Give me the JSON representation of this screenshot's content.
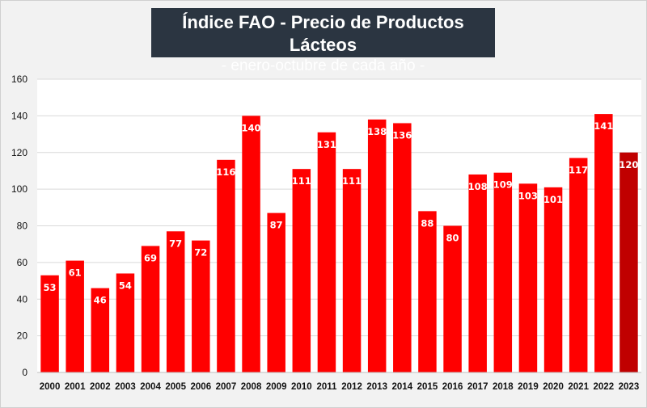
{
  "header": {
    "title": "Índice FAO - Precio de Productos Lácteos",
    "subtitle": "- enero-octubre de cada año -"
  },
  "chart_data": {
    "type": "bar",
    "title": "Índice FAO - Precio de Productos Lácteos",
    "subtitle": "- enero-octubre de cada año -",
    "xlabel": "",
    "ylabel": "",
    "ylim": [
      0,
      160
    ],
    "yticks": [
      0,
      20,
      40,
      60,
      80,
      100,
      120,
      140,
      160
    ],
    "grid": true,
    "legend": "none",
    "categories": [
      "2000",
      "2001",
      "2002",
      "2003",
      "2004",
      "2005",
      "2006",
      "2007",
      "2008",
      "2009",
      "2010",
      "2011",
      "2012",
      "2013",
      "2014",
      "2015",
      "2016",
      "2017",
      "2018",
      "2019",
      "2020",
      "2021",
      "2022",
      "2023"
    ],
    "values": [
      53,
      61,
      46,
      54,
      69,
      77,
      72,
      116,
      140,
      87,
      111,
      131,
      111,
      138,
      136,
      88,
      80,
      108,
      109,
      103,
      101,
      117,
      141,
      120
    ],
    "colors": {
      "bar": "#ff0000",
      "highlight": "#c00000",
      "grid": "#d9d9d9"
    },
    "highlight_category": "2023"
  }
}
